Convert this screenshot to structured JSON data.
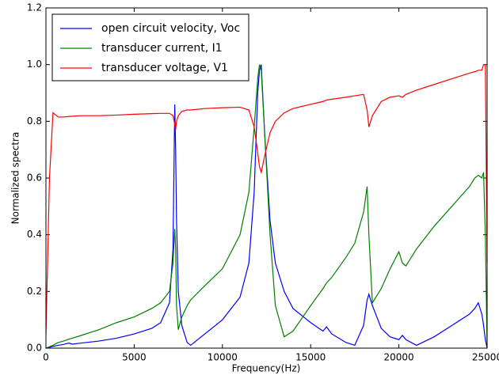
{
  "chart_data": {
    "type": "line",
    "xlabel": "Frequency(Hz)",
    "ylabel": "Normalized spectra",
    "x": [
      0,
      200,
      400,
      700,
      1000,
      1300,
      1500,
      2000,
      3000,
      4000,
      5000,
      6000,
      6500,
      7000,
      7200,
      7300,
      7350,
      7400,
      7500,
      7700,
      8000,
      8200,
      9000,
      10000,
      11000,
      11500,
      11800,
      12000,
      12100,
      12200,
      12400,
      12700,
      13000,
      13500,
      14000,
      15000,
      15700,
      15900,
      16200,
      17000,
      17500,
      18000,
      18200,
      18300,
      18500,
      19000,
      19500,
      20000,
      20200,
      20400,
      21000,
      22000,
      23000,
      24000,
      24300,
      24500,
      24700,
      24800,
      24900,
      25000
    ],
    "series": [
      {
        "name": "open circuit velocity, Voc",
        "color": "#0000ff",
        "values": [
          0,
          0.003,
          0.006,
          0.01,
          0.013,
          0.018,
          0.014,
          0.018,
          0.025,
          0.035,
          0.05,
          0.07,
          0.09,
          0.16,
          0.35,
          0.86,
          0.7,
          0.45,
          0.2,
          0.08,
          0.02,
          0.01,
          0.05,
          0.1,
          0.18,
          0.3,
          0.55,
          0.9,
          0.98,
          1.0,
          0.75,
          0.45,
          0.3,
          0.2,
          0.14,
          0.09,
          0.06,
          0.075,
          0.05,
          0.02,
          0.01,
          0.08,
          0.17,
          0.19,
          0.15,
          0.07,
          0.04,
          0.03,
          0.045,
          0.03,
          0.01,
          0.04,
          0.08,
          0.12,
          0.14,
          0.16,
          0.12,
          0.08,
          0.03,
          0.0
        ]
      },
      {
        "name": "transducer current, I1",
        "color": "#008000",
        "values": [
          0,
          0.005,
          0.01,
          0.02,
          0.025,
          0.032,
          0.035,
          0.045,
          0.065,
          0.09,
          0.11,
          0.14,
          0.16,
          0.2,
          0.3,
          0.42,
          0.35,
          0.15,
          0.065,
          0.11,
          0.15,
          0.17,
          0.22,
          0.28,
          0.4,
          0.55,
          0.78,
          0.95,
          1.0,
          0.98,
          0.75,
          0.4,
          0.15,
          0.04,
          0.06,
          0.15,
          0.21,
          0.23,
          0.25,
          0.32,
          0.37,
          0.48,
          0.57,
          0.4,
          0.16,
          0.21,
          0.28,
          0.34,
          0.3,
          0.29,
          0.35,
          0.43,
          0.5,
          0.57,
          0.6,
          0.61,
          0.6,
          0.62,
          0.4,
          0.0
        ]
      },
      {
        "name": "transducer voltage, V1",
        "color": "#ff0000",
        "values": [
          0.05,
          0.6,
          0.83,
          0.815,
          0.815,
          0.817,
          0.818,
          0.82,
          0.82,
          0.822,
          0.825,
          0.827,
          0.828,
          0.828,
          0.82,
          0.79,
          0.77,
          0.8,
          0.82,
          0.835,
          0.84,
          0.84,
          0.845,
          0.848,
          0.85,
          0.84,
          0.78,
          0.69,
          0.64,
          0.62,
          0.68,
          0.76,
          0.8,
          0.83,
          0.845,
          0.86,
          0.87,
          0.875,
          0.878,
          0.885,
          0.89,
          0.895,
          0.84,
          0.78,
          0.82,
          0.87,
          0.885,
          0.89,
          0.885,
          0.895,
          0.91,
          0.93,
          0.95,
          0.97,
          0.975,
          0.98,
          0.98,
          1.0,
          1.0,
          0.3
        ]
      }
    ],
    "xlim": [
      0,
      25000
    ],
    "ylim": [
      0,
      1.2
    ],
    "xticks": [
      0,
      5000,
      10000,
      15000,
      20000,
      25000
    ],
    "yticks": [
      {
        "value": 0,
        "label": "0.0"
      },
      0.2,
      0.4,
      0.6,
      0.8,
      {
        "value": 1,
        "label": "1.0"
      },
      1.2
    ],
    "legend": "upper left"
  }
}
